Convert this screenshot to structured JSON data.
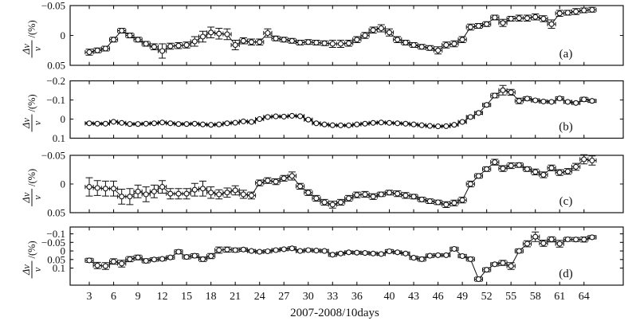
{
  "figure": {
    "xlabel": "2007-2008/10days",
    "ylabel": {
      "numerator": "Δv",
      "denominator": "v",
      "suffix": "/(%)"
    },
    "colors": {
      "ink": "#111111",
      "background": "#ffffff",
      "marker_fill": "#ffffff"
    }
  },
  "chart_data": {
    "type": "line",
    "title": "",
    "xlabel": "2007-2008/10days",
    "ylabel": "Δv/v /(%)",
    "legend": "none",
    "grid": false,
    "marker": "open-circle",
    "x_error_half_width": 0.5,
    "x_axis": {
      "min": 0.64,
      "max": 68.84,
      "ticks": [
        3,
        6,
        9,
        12,
        15,
        18,
        21,
        24,
        27,
        30,
        33,
        36,
        40,
        43,
        46,
        49,
        52,
        55,
        58,
        61,
        64
      ]
    },
    "x": [
      3,
      4,
      5,
      6,
      7,
      8,
      9,
      10,
      11,
      12,
      13,
      14,
      15,
      16,
      17,
      18,
      19,
      20,
      21,
      22,
      23,
      24,
      25,
      26,
      27,
      28,
      29,
      30,
      31,
      32,
      33,
      34,
      35,
      36,
      37,
      38,
      39,
      40,
      41,
      42,
      43,
      44,
      45,
      46,
      47,
      48,
      49,
      50,
      51,
      52,
      53,
      54,
      55,
      56,
      57,
      58,
      59,
      60,
      61,
      62,
      63,
      64,
      65
    ],
    "panels": [
      {
        "id": "a",
        "label": "(a)",
        "ylim": [
          -0.05,
          0.05
        ],
        "yticks": [
          -0.05,
          0,
          0.05
        ],
        "ytick_labels": [
          "−0.05",
          "0",
          "0.05"
        ],
        "y": [
          0.028,
          0.025,
          0.022,
          0.007,
          -0.008,
          0.0,
          0.007,
          0.014,
          0.019,
          0.026,
          0.018,
          0.017,
          0.016,
          0.01,
          0.002,
          -0.005,
          -0.003,
          -0.002,
          0.016,
          0.009,
          0.011,
          0.011,
          -0.004,
          0.005,
          0.007,
          0.009,
          0.012,
          0.011,
          0.012,
          0.013,
          0.014,
          0.014,
          0.013,
          0.007,
          0.0,
          -0.009,
          -0.012,
          -0.005,
          0.007,
          0.012,
          0.016,
          0.019,
          0.021,
          0.025,
          0.016,
          0.014,
          0.007,
          -0.014,
          -0.016,
          -0.019,
          -0.03,
          -0.021,
          -0.028,
          -0.029,
          -0.029,
          -0.031,
          -0.028,
          -0.019,
          -0.037,
          -0.038,
          -0.04,
          -0.042,
          -0.043
        ],
        "yerr": [
          0.005,
          0.004,
          0.004,
          0.004,
          0.004,
          0.004,
          0.004,
          0.004,
          0.005,
          0.012,
          0.005,
          0.005,
          0.005,
          0.008,
          0.009,
          0.009,
          0.009,
          0.009,
          0.008,
          0.005,
          0.005,
          0.005,
          0.007,
          0.004,
          0.004,
          0.004,
          0.004,
          0.004,
          0.004,
          0.004,
          0.006,
          0.006,
          0.005,
          0.005,
          0.005,
          0.005,
          0.006,
          0.006,
          0.005,
          0.004,
          0.004,
          0.004,
          0.004,
          0.006,
          0.005,
          0.005,
          0.005,
          0.005,
          0.004,
          0.004,
          0.004,
          0.006,
          0.004,
          0.005,
          0.005,
          0.005,
          0.005,
          0.007,
          0.005,
          0.004,
          0.005,
          0.004,
          0.004
        ]
      },
      {
        "id": "b",
        "label": "(b)",
        "ylim": [
          -0.2,
          0.1
        ],
        "yticks": [
          -0.2,
          -0.1,
          0,
          0.1
        ],
        "ytick_labels": [
          "−0.2",
          "−0.1",
          "0",
          "0.1"
        ],
        "y": [
          0.022,
          0.024,
          0.024,
          0.014,
          0.02,
          0.026,
          0.026,
          0.024,
          0.022,
          0.018,
          0.022,
          0.026,
          0.026,
          0.024,
          0.028,
          0.03,
          0.028,
          0.022,
          0.019,
          0.012,
          0.015,
          0.0,
          -0.011,
          -0.014,
          -0.013,
          -0.017,
          -0.015,
          0.003,
          0.022,
          0.028,
          0.032,
          0.033,
          0.033,
          0.028,
          0.024,
          0.02,
          0.018,
          0.02,
          0.022,
          0.024,
          0.028,
          0.032,
          0.036,
          0.038,
          0.037,
          0.03,
          0.015,
          -0.011,
          -0.032,
          -0.074,
          -0.123,
          -0.151,
          -0.14,
          -0.095,
          -0.107,
          -0.098,
          -0.092,
          -0.09,
          -0.108,
          -0.09,
          -0.084,
          -0.103,
          -0.095
        ],
        "yerr": [
          0.004,
          0.004,
          0.004,
          0.004,
          0.004,
          0.004,
          0.004,
          0.004,
          0.004,
          0.004,
          0.004,
          0.004,
          0.004,
          0.004,
          0.004,
          0.004,
          0.004,
          0.004,
          0.004,
          0.004,
          0.004,
          0.004,
          0.004,
          0.004,
          0.004,
          0.004,
          0.004,
          0.004,
          0.004,
          0.004,
          0.004,
          0.004,
          0.004,
          0.004,
          0.004,
          0.004,
          0.004,
          0.004,
          0.004,
          0.004,
          0.004,
          0.004,
          0.004,
          0.004,
          0.004,
          0.004,
          0.004,
          0.006,
          0.007,
          0.008,
          0.012,
          0.025,
          0.015,
          0.014,
          0.01,
          0.008,
          0.007,
          0.006,
          0.009,
          0.007,
          0.007,
          0.011,
          0.008
        ]
      },
      {
        "id": "c",
        "label": "(c)",
        "ylim": [
          -0.05,
          0.05
        ],
        "yticks": [
          -0.05,
          0,
          0.05
        ],
        "ytick_labels": [
          "−0.05",
          "0",
          "0.05"
        ],
        "y": [
          0.005,
          0.007,
          0.008,
          0.008,
          0.022,
          0.022,
          0.013,
          0.018,
          0.013,
          0.005,
          0.017,
          0.017,
          0.017,
          0.01,
          0.008,
          0.015,
          0.018,
          0.015,
          0.011,
          0.018,
          0.02,
          -0.002,
          -0.006,
          -0.004,
          -0.01,
          -0.014,
          0.004,
          0.015,
          0.025,
          0.032,
          0.036,
          0.032,
          0.025,
          0.019,
          0.018,
          0.022,
          0.018,
          0.015,
          0.017,
          0.02,
          0.022,
          0.027,
          0.03,
          0.032,
          0.036,
          0.033,
          0.028,
          0.0,
          -0.014,
          -0.026,
          -0.038,
          -0.027,
          -0.032,
          -0.033,
          -0.026,
          -0.021,
          -0.016,
          -0.028,
          -0.02,
          -0.022,
          -0.03,
          -0.043,
          -0.041
        ],
        "yerr": [
          0.016,
          0.013,
          0.013,
          0.013,
          0.013,
          0.014,
          0.011,
          0.013,
          0.011,
          0.011,
          0.009,
          0.009,
          0.009,
          0.011,
          0.013,
          0.01,
          0.008,
          0.008,
          0.008,
          0.007,
          0.006,
          0.005,
          0.005,
          0.005,
          0.005,
          0.007,
          0.005,
          0.005,
          0.005,
          0.005,
          0.006,
          0.005,
          0.005,
          0.005,
          0.005,
          0.005,
          0.004,
          0.004,
          0.005,
          0.005,
          0.004,
          0.004,
          0.004,
          0.004,
          0.005,
          0.005,
          0.005,
          0.005,
          0.004,
          0.004,
          0.005,
          0.005,
          0.005,
          0.004,
          0.004,
          0.005,
          0.005,
          0.005,
          0.005,
          0.005,
          0.006,
          0.008,
          0.008
        ]
      },
      {
        "id": "d",
        "label": "(d)",
        "ylim": [
          -0.14,
          0.2
        ],
        "yticks": [
          -0.1,
          -0.05,
          0,
          0.05,
          0.1
        ],
        "ytick_labels": [
          "−0.1",
          "−0.05",
          "0",
          "0.05",
          "0.1"
        ],
        "y": [
          0.055,
          0.085,
          0.088,
          0.062,
          0.074,
          0.048,
          0.038,
          0.058,
          0.05,
          0.047,
          0.038,
          0.005,
          0.035,
          0.028,
          0.048,
          0.03,
          -0.005,
          -0.008,
          -0.005,
          -0.008,
          0.0,
          0.005,
          0.002,
          -0.005,
          -0.01,
          -0.015,
          0.0,
          -0.005,
          -0.002,
          0.0,
          0.022,
          0.015,
          0.008,
          0.01,
          0.012,
          0.015,
          0.018,
          0.002,
          0.008,
          0.015,
          0.04,
          0.048,
          0.028,
          0.025,
          0.025,
          -0.012,
          0.03,
          0.048,
          0.165,
          0.11,
          0.078,
          0.07,
          0.088,
          0.0,
          -0.042,
          -0.083,
          -0.045,
          -0.068,
          -0.042,
          -0.068,
          -0.067,
          -0.067,
          -0.08
        ],
        "yerr": [
          0.012,
          0.018,
          0.02,
          0.016,
          0.02,
          0.015,
          0.014,
          0.012,
          0.01,
          0.01,
          0.01,
          0.012,
          0.012,
          0.012,
          0.013,
          0.015,
          0.018,
          0.015,
          0.012,
          0.01,
          0.008,
          0.008,
          0.008,
          0.008,
          0.008,
          0.01,
          0.008,
          0.008,
          0.008,
          0.008,
          0.01,
          0.008,
          0.008,
          0.008,
          0.008,
          0.008,
          0.008,
          0.01,
          0.008,
          0.008,
          0.01,
          0.012,
          0.01,
          0.008,
          0.008,
          0.01,
          0.01,
          0.012,
          0.012,
          0.012,
          0.01,
          0.015,
          0.02,
          0.012,
          0.018,
          0.028,
          0.018,
          0.015,
          0.02,
          0.012,
          0.012,
          0.015,
          0.01
        ]
      }
    ]
  }
}
